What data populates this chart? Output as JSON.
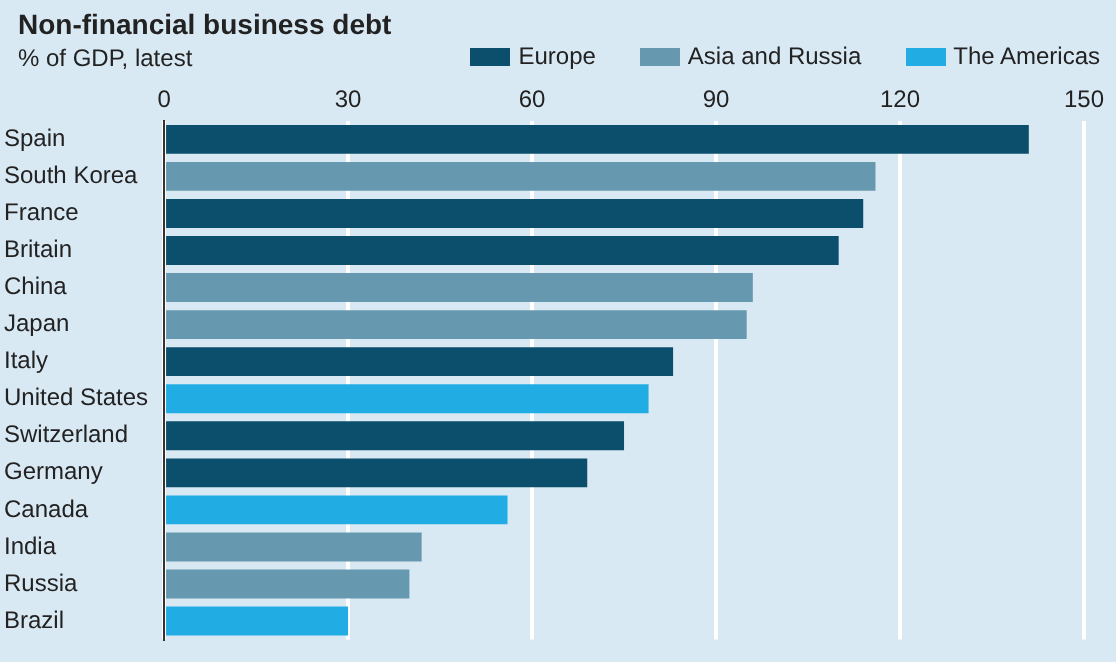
{
  "chart_data": {
    "type": "bar",
    "orientation": "horizontal",
    "title": "Non-financial business debt",
    "subtitle": "% of GDP, latest",
    "categories": [
      "Spain",
      "South Korea",
      "France",
      "Britain",
      "China",
      "Japan",
      "Italy",
      "United States",
      "Switzerland",
      "Germany",
      "Canada",
      "India",
      "Russia",
      "Brazil"
    ],
    "series": [
      {
        "name": "Europe",
        "color": "#0b4f6c",
        "values": [
          141,
          null,
          114,
          110,
          null,
          null,
          83,
          null,
          75,
          69,
          null,
          null,
          null,
          null
        ]
      },
      {
        "name": "Asia and Russia",
        "color": "#6699b0",
        "values": [
          null,
          116,
          null,
          null,
          96,
          95,
          null,
          null,
          null,
          null,
          null,
          42,
          40,
          null
        ]
      },
      {
        "name": "The Americas",
        "color": "#22ace4",
        "values": [
          null,
          null,
          null,
          null,
          null,
          null,
          null,
          79,
          null,
          null,
          56,
          null,
          null,
          30
        ]
      }
    ],
    "xlim": [
      0,
      150
    ],
    "xticks": [
      0,
      30,
      60,
      90,
      120,
      150
    ],
    "grid": "x",
    "legend": "top right"
  }
}
